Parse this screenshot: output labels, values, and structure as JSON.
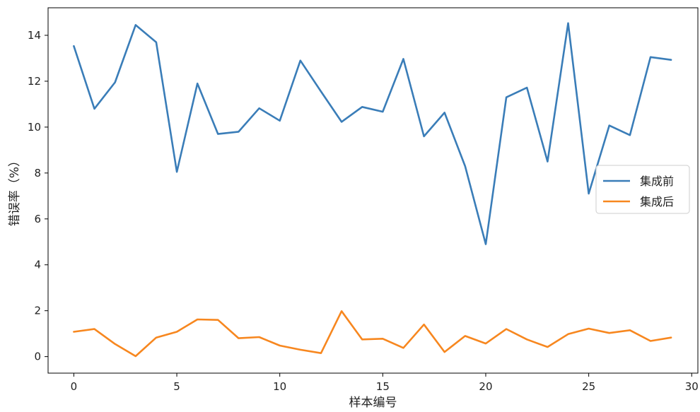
{
  "chart_data": {
    "type": "line",
    "title": "",
    "xlabel": "样本编号",
    "ylabel": "错误率（%）",
    "xlim": [
      -1.25,
      30.3
    ],
    "ylim": [
      -0.72,
      15.2
    ],
    "xticks": [
      0,
      5,
      10,
      15,
      20,
      25,
      30
    ],
    "yticks": [
      0,
      2,
      4,
      6,
      8,
      10,
      12,
      14
    ],
    "xtick_labels": [
      "0",
      "5",
      "10",
      "15",
      "20",
      "25",
      "30"
    ],
    "ytick_labels": [
      "0",
      "2",
      "4",
      "6",
      "8",
      "10",
      "12",
      "14"
    ],
    "grid": false,
    "legend_position": "center-right",
    "x": [
      0,
      1,
      2,
      3,
      4,
      5,
      6,
      7,
      8,
      9,
      10,
      11,
      12,
      13,
      14,
      15,
      16,
      17,
      18,
      19,
      20,
      21,
      22,
      23,
      24,
      25,
      26,
      27,
      28,
      29
    ],
    "series": [
      {
        "name": "集成前",
        "color": "#3a7db8",
        "values": [
          13.53,
          10.8,
          11.95,
          14.45,
          13.7,
          8.05,
          11.9,
          9.7,
          9.8,
          10.82,
          10.28,
          12.9,
          11.55,
          10.23,
          10.88,
          10.67,
          12.97,
          9.6,
          10.63,
          8.3,
          4.9,
          11.3,
          11.72,
          8.5,
          14.53,
          7.1,
          10.07,
          9.65,
          13.05,
          12.93
        ]
      },
      {
        "name": "集成后",
        "color": "#f7871f",
        "values": [
          1.08,
          1.2,
          0.55,
          0.02,
          0.83,
          1.08,
          1.62,
          1.6,
          0.8,
          0.85,
          0.48,
          0.3,
          0.15,
          1.98,
          0.75,
          0.78,
          0.38,
          1.4,
          0.2,
          0.9,
          0.57,
          1.2,
          0.75,
          0.42,
          0.98,
          1.22,
          1.03,
          1.15,
          0.68,
          0.83
        ]
      }
    ]
  }
}
